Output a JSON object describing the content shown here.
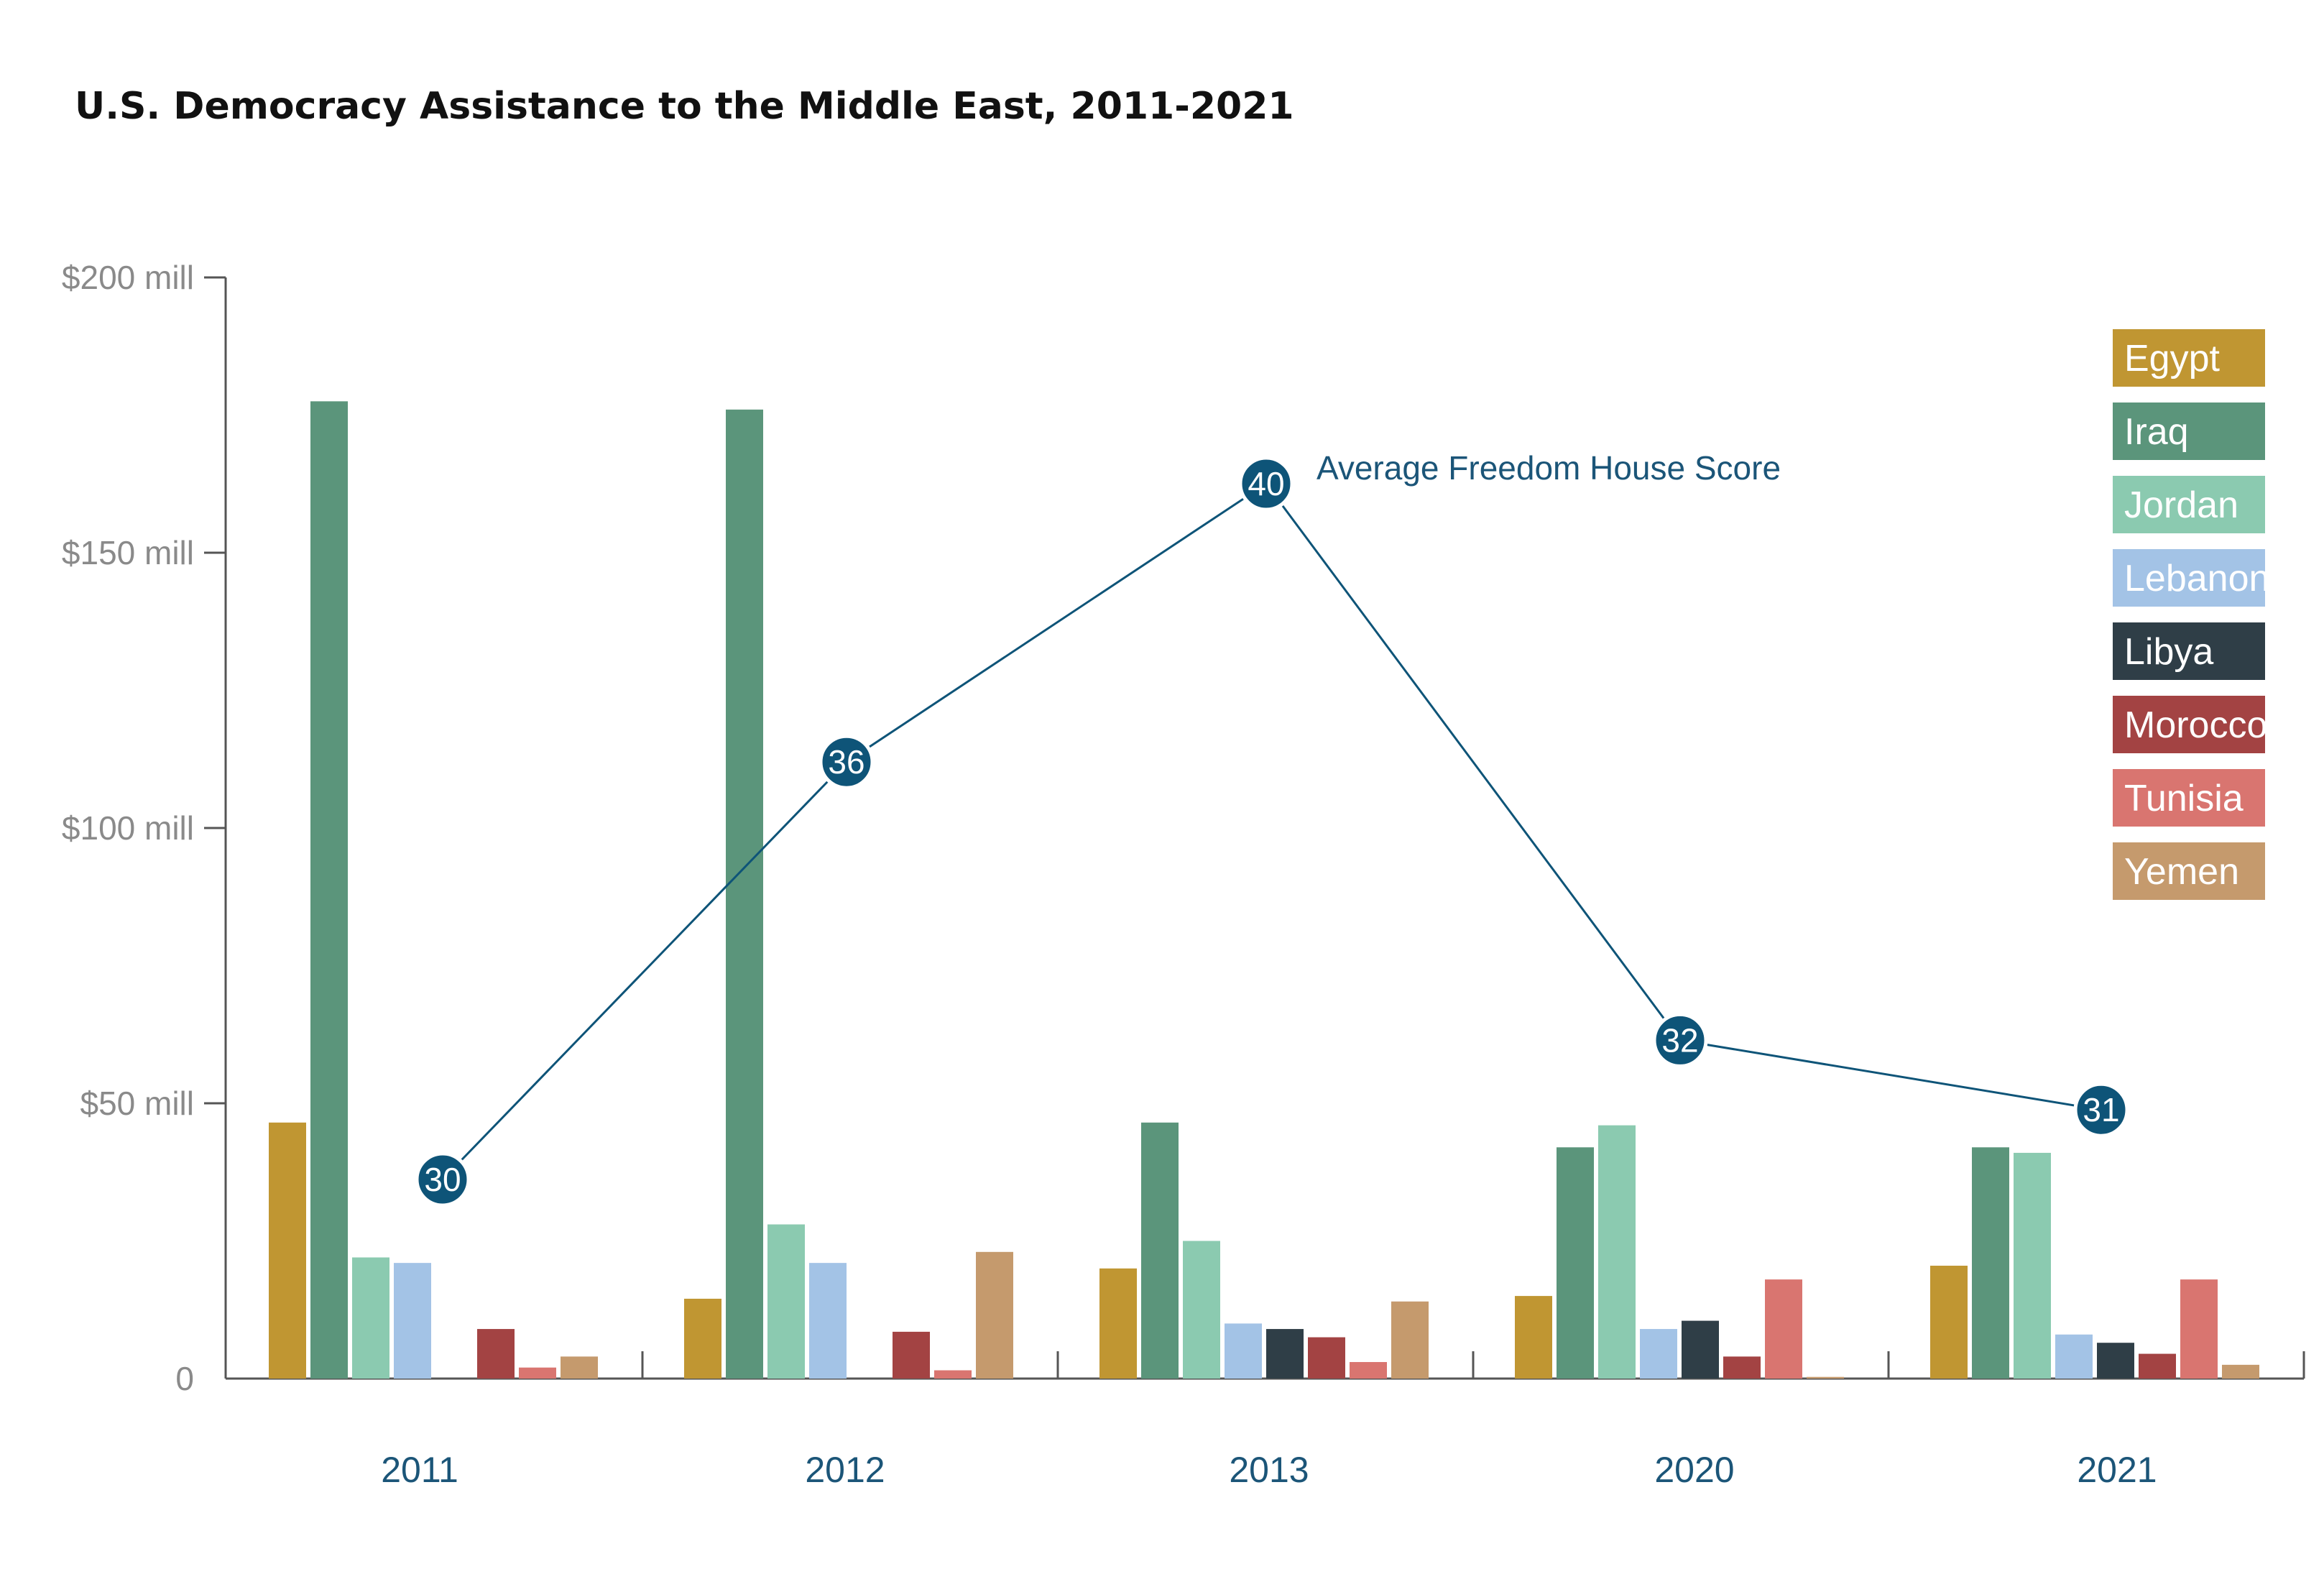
{
  "title": "U.S. Democracy Assistance to the Middle East, 2011-2021",
  "chart_data": {
    "type": "bar",
    "title": "U.S. Democracy Assistance to the Middle East, 2011-2021",
    "xlabel": "",
    "ylabel": "",
    "categories": [
      "2011",
      "2012",
      "2013",
      "2020",
      "2021"
    ],
    "ylim": [
      0,
      200
    ],
    "yticks": [
      0,
      50,
      100,
      150,
      200
    ],
    "ytick_labels": [
      "0",
      "$50 mill",
      "$100 mill",
      "$150 mill",
      "$200 mill"
    ],
    "grid": false,
    "legend_position": "top-right",
    "series": [
      {
        "name": "Egypt",
        "color": "#c09632",
        "values": [
          46.5,
          14.5,
          20,
          15,
          20.5
        ]
      },
      {
        "name": "Iraq",
        "color": "#5b957b",
        "values": [
          177.5,
          176,
          46.5,
          42,
          42
        ]
      },
      {
        "name": "Jordan",
        "color": "#8bcab0",
        "values": [
          22,
          28,
          25,
          46,
          41
        ]
      },
      {
        "name": "Lebanon",
        "color": "#a3c3e6",
        "values": [
          21,
          21,
          10,
          9,
          8
        ]
      },
      {
        "name": "Libya",
        "color": "#2f3e47",
        "values": [
          0,
          0,
          9,
          10.5,
          6.5
        ]
      },
      {
        "name": "Morocco",
        "color": "#a34343",
        "values": [
          9,
          8.5,
          7.5,
          4,
          4.5
        ]
      },
      {
        "name": "Tunisia",
        "color": "#d97570",
        "values": [
          2,
          1.5,
          3,
          18,
          18
        ]
      },
      {
        "name": "Yemen",
        "color": "#c59a6d",
        "values": [
          4,
          23,
          14,
          0.3,
          2.5
        ]
      }
    ],
    "line_series": {
      "name": "Average Freedom House Score",
      "color": "#0e5478",
      "values": [
        30,
        36,
        40,
        32,
        31
      ]
    }
  }
}
